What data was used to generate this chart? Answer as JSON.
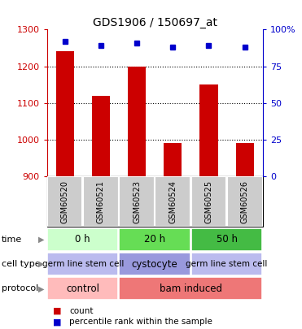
{
  "title": "GDS1906 / 150697_at",
  "samples": [
    "GSM60520",
    "GSM60521",
    "GSM60523",
    "GSM60524",
    "GSM60525",
    "GSM60526"
  ],
  "counts": [
    1240,
    1120,
    1200,
    990,
    1150,
    990
  ],
  "percentiles": [
    92,
    89,
    91,
    88,
    89,
    88
  ],
  "ylim_left": [
    900,
    1300
  ],
  "ylim_right": [
    0,
    100
  ],
  "yticks_left": [
    900,
    1000,
    1100,
    1200,
    1300
  ],
  "yticks_right": [
    0,
    25,
    50,
    75,
    100
  ],
  "bar_color": "#cc0000",
  "square_color": "#0000cc",
  "time_data": [
    [
      0,
      2,
      "0 h",
      "#ccffcc"
    ],
    [
      2,
      4,
      "20 h",
      "#66dd55"
    ],
    [
      4,
      6,
      "50 h",
      "#44bb44"
    ]
  ],
  "celltype_data": [
    [
      0,
      2,
      "germ line stem cell",
      "#bbbbee"
    ],
    [
      2,
      4,
      "cystocyte",
      "#9999dd"
    ],
    [
      4,
      6,
      "germ line stem cell",
      "#bbbbee"
    ]
  ],
  "protocol_data": [
    [
      0,
      2,
      "control",
      "#ffbbbb"
    ],
    [
      2,
      6,
      "bam induced",
      "#ee7777"
    ]
  ],
  "row_labels": [
    "time",
    "cell type",
    "protocol"
  ],
  "left_axis_color": "#cc0000",
  "right_axis_color": "#0000cc",
  "sample_bg_color": "#cccccc",
  "grid_yticks": [
    1000,
    1100,
    1200
  ]
}
